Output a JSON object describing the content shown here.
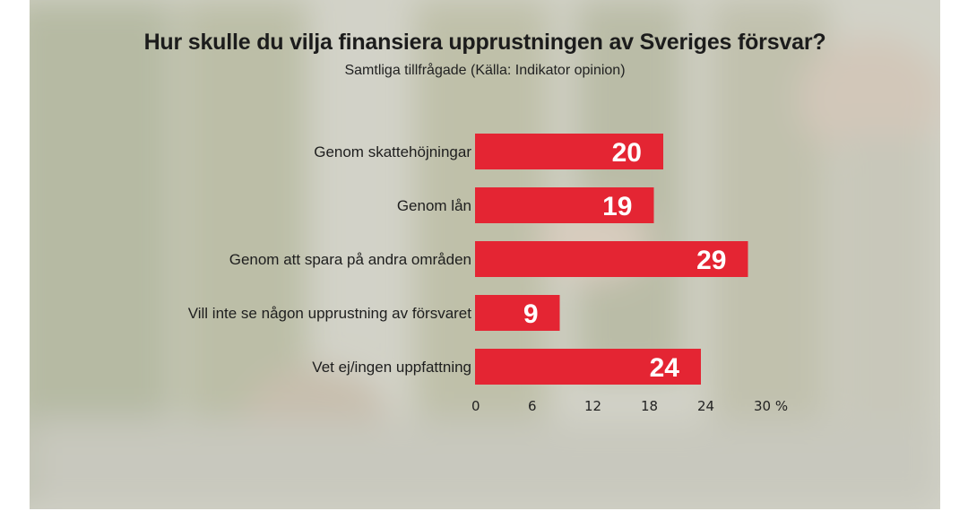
{
  "chart_data": {
    "type": "bar",
    "orientation": "horizontal",
    "title": "Hur skulle du vilja finansiera upprustningen av Sveriges försvar?",
    "subtitle": "Samtliga tillfrågade (Källa: Indikator opinion)",
    "categories": [
      "Genom skattehöjningar",
      "Genom lån",
      "Genom att spara på andra områden",
      "Vill inte se någon upprustning av försvaret",
      "Vet ej/ingen uppfattning"
    ],
    "values": [
      20,
      19,
      29,
      9,
      24
    ],
    "xlim": [
      0,
      30
    ],
    "ticks": [
      0,
      6,
      12,
      18,
      24,
      30
    ],
    "tick_labels": [
      "0",
      "6",
      "12",
      "18",
      "24",
      "30 %"
    ],
    "bar_color": "#e42533",
    "grid": false,
    "legend": "none"
  }
}
